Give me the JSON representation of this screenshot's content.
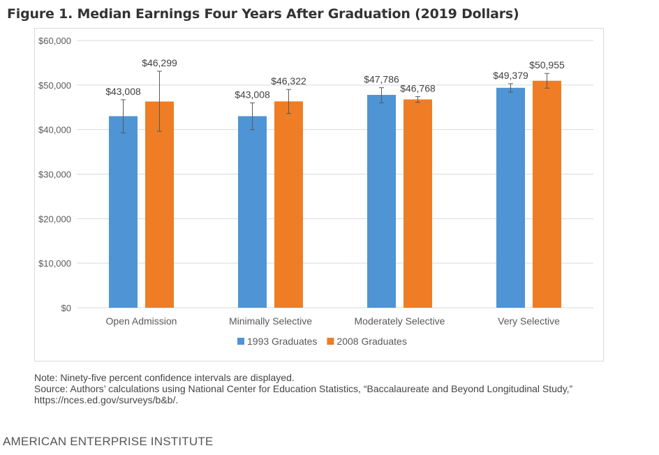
{
  "figure": {
    "title": "Figure 1. Median Earnings Four Years After Graduation (2019 Dollars)",
    "note": "Note: Ninety-five percent confidence intervals are displayed.",
    "source": "Source: Authors’ calculations using National Center for Education Statistics, “Baccalaureate and Beyond Longitudinal Study,” https://nces.ed.gov/surveys/b&b/.",
    "footer": "AMERICAN ENTERPRISE INSTITUTE"
  },
  "chart_data": {
    "type": "bar",
    "title": "",
    "xlabel": "",
    "ylabel": "",
    "categories": [
      "Open Admission",
      "Minimally Selective",
      "Moderately Selective",
      "Very Selective"
    ],
    "series": [
      {
        "name": "1993 Graduates",
        "color": "#4f94d4",
        "values": [
          43008,
          43008,
          47786,
          49379
        ],
        "labels": [
          "$43,008",
          "$43,008",
          "$47,786",
          "$49,379"
        ],
        "ci_low": [
          39300,
          40000,
          46000,
          48400
        ],
        "ci_high": [
          46700,
          46000,
          49400,
          50300
        ]
      },
      {
        "name": "2008 Graduates",
        "color": "#ee7d25",
        "values": [
          46299,
          46322,
          46768,
          50955
        ],
        "labels": [
          "$46,299",
          "$46,322",
          "$46,768",
          "$50,955"
        ],
        "ci_low": [
          39600,
          43600,
          46100,
          49300
        ],
        "ci_high": [
          53100,
          49000,
          47400,
          52600
        ]
      }
    ],
    "ylim": [
      0,
      60000
    ],
    "yticks": [
      0,
      10000,
      20000,
      30000,
      40000,
      50000,
      60000
    ],
    "ytick_labels": [
      "$0",
      "$10,000",
      "$20,000",
      "$30,000",
      "$40,000",
      "$50,000",
      "$60,000"
    ],
    "grid": true,
    "legend": "bottom"
  }
}
